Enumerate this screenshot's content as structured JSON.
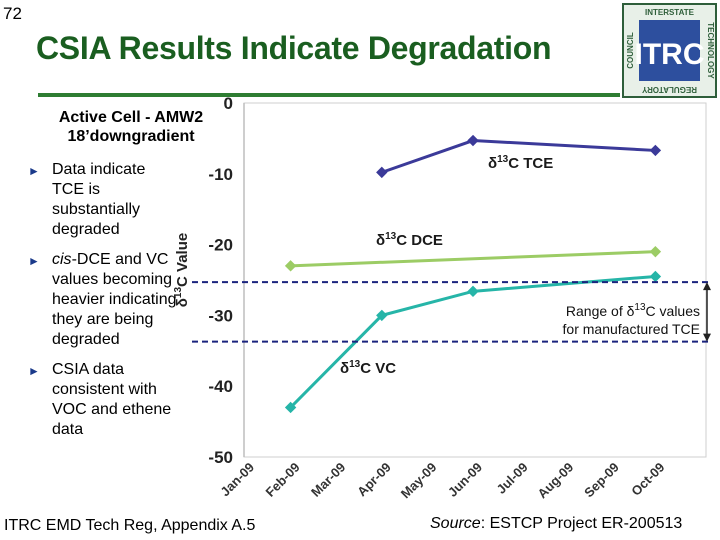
{
  "slide": {
    "number": "72",
    "title": "CSIA Results Indicate Degradation"
  },
  "logo": {
    "acronym": "ITRC",
    "word_top": "INTERSTATE",
    "word_left": "COUNCIL",
    "word_right": "TECHNOLOGY",
    "word_bottom": "REGULATORY"
  },
  "cell_title": {
    "line1": "Active Cell - AMW2",
    "line2": "18’downgradient"
  },
  "bullets": [
    {
      "prefix": "",
      "text": "Data indicate TCE is substantially degraded"
    },
    {
      "prefix": "cis",
      "text": "-DCE and VC values becoming heavier indicating they are being degraded"
    },
    {
      "prefix": "",
      "text": "CSIA data consistent with VOC and ethene data"
    }
  ],
  "footer": {
    "left": "ITRC EMD Tech Reg, Appendix A.5",
    "source_label": "Source",
    "source_text": ": ESTCP Project ER-200513"
  },
  "colors": {
    "title": "#1a5e20",
    "tce": "#3b3a99",
    "dce": "#9ccc65",
    "vc": "#26b5a8",
    "range": "#1a237e"
  },
  "chart_data": {
    "type": "line",
    "ylabel_base": "δ",
    "ylabel_sup": "13",
    "ylabel_rest": "C Value",
    "ylim": [
      -50,
      0
    ],
    "yticks": [
      0,
      -10,
      -20,
      -30,
      -40,
      -50
    ],
    "categories": [
      "Jan-09",
      "Feb-09",
      "Mar-09",
      "Apr-09",
      "May-09",
      "Jun-09",
      "Jul-09",
      "Aug-09",
      "Sep-09",
      "Oct-09"
    ],
    "series": [
      {
        "name": "TCE",
        "label_base": "δ",
        "label_sup": "13",
        "label_rest": "C TCE",
        "points": [
          [
            3,
            -9.8
          ],
          [
            5,
            -5.3
          ],
          [
            9,
            -6.7
          ]
        ]
      },
      {
        "name": "DCE",
        "label_base": "δ",
        "label_sup": "13",
        "label_rest": "C DCE",
        "points": [
          [
            1,
            -23
          ],
          [
            9,
            -21
          ]
        ]
      },
      {
        "name": "VC",
        "label_base": "δ",
        "label_sup": "13",
        "label_rest": "C VC",
        "points": [
          [
            1,
            -43
          ],
          [
            3,
            -30
          ],
          [
            5,
            -26.6
          ],
          [
            9,
            -24.5
          ]
        ]
      }
    ],
    "range": {
      "low": -33.7,
      "high": -25.3,
      "text_line1_base": "Range of δ",
      "text_line1_sup": "13",
      "text_line1_rest": "C values",
      "text_line2": "for manufactured TCE"
    }
  }
}
